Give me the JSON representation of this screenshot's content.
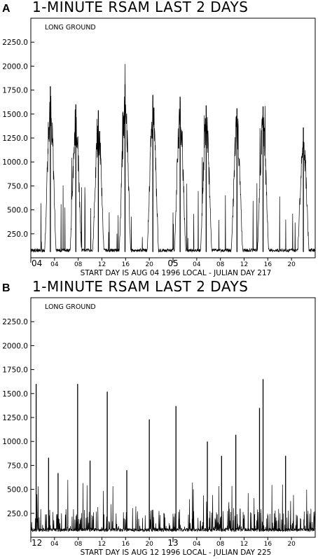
{
  "chart_data": [
    {
      "type": "line",
      "panel_label": "A",
      "title": "1-MINUTE RSAM LAST 2 DAYS",
      "inner_label": "LONG GROUND",
      "footer": "START DAY IS AUG 04 1996 LOCAL - JULIAN DAY 217",
      "ylim": [
        0,
        2500
      ],
      "yticks": [
        "250.0",
        "500.0",
        "750.0",
        "1000.0",
        "1250.0",
        "1500.0",
        "1750.0",
        "2000.0",
        "2250.0"
      ],
      "xlim": [
        0,
        48
      ],
      "xticks": [
        {
          "hour": 0,
          "label": "04"
        },
        {
          "hour": 4,
          "label": "04"
        },
        {
          "hour": 8,
          "label": "08"
        },
        {
          "hour": 12,
          "label": "12"
        },
        {
          "hour": 16,
          "label": "16"
        },
        {
          "hour": 20,
          "label": "20"
        },
        {
          "hour": 24,
          "label": "05"
        },
        {
          "hour": 28,
          "label": "04"
        },
        {
          "hour": 32,
          "label": "08"
        },
        {
          "hour": 36,
          "label": "12"
        },
        {
          "hour": 40,
          "label": "16"
        },
        {
          "hour": 44,
          "label": "20"
        }
      ],
      "day_ticks": [
        0,
        24
      ],
      "grid": false,
      "baseline": 60,
      "peaks": [
        {
          "hour": 3.3,
          "value": 1790
        },
        {
          "hour": 7.6,
          "value": 1600
        },
        {
          "hour": 11.4,
          "value": 1540
        },
        {
          "hour": 15.9,
          "value": 1810
        },
        {
          "hour": 20.6,
          "value": 1700
        },
        {
          "hour": 25.2,
          "value": 1680
        },
        {
          "hour": 29.6,
          "value": 1590
        },
        {
          "hour": 34.8,
          "value": 1560
        },
        {
          "hour": 39.2,
          "value": 1580
        },
        {
          "hour": 46.0,
          "value": 1360
        }
      ]
    },
    {
      "type": "line",
      "panel_label": "B",
      "title": "1-MINUTE RSAM LAST 2 DAYS",
      "inner_label": "LONG GROUND",
      "footer": "START DAY IS AUG 12 1996 LOCAL - JULIAN DAY 225",
      "ylim": [
        0,
        2500
      ],
      "yticks": [
        "250.0",
        "500.0",
        "750.0",
        "1000.0",
        "1250.0",
        "1500.0",
        "1750.0",
        "2000.0",
        "2250.0"
      ],
      "xlim": [
        0,
        48
      ],
      "xticks": [
        {
          "hour": 0,
          "label": "12"
        },
        {
          "hour": 4,
          "label": "04"
        },
        {
          "hour": 8,
          "label": "08"
        },
        {
          "hour": 12,
          "label": "12"
        },
        {
          "hour": 16,
          "label": "16"
        },
        {
          "hour": 20,
          "label": "20"
        },
        {
          "hour": 24,
          "label": "13"
        },
        {
          "hour": 28,
          "label": "04"
        },
        {
          "hour": 32,
          "label": "08"
        },
        {
          "hour": 36,
          "label": "12"
        },
        {
          "hour": 40,
          "label": "16"
        },
        {
          "hour": 44,
          "label": "20"
        }
      ],
      "day_ticks": [
        0,
        24
      ],
      "grid": false,
      "baseline": 60,
      "spikes": [
        {
          "hour": 0.9,
          "value": 1600
        },
        {
          "hour": 3.0,
          "value": 830
        },
        {
          "hour": 4.6,
          "value": 670
        },
        {
          "hour": 7.9,
          "value": 1600
        },
        {
          "hour": 10.0,
          "value": 800
        },
        {
          "hour": 12.9,
          "value": 1520
        },
        {
          "hour": 16.2,
          "value": 700
        },
        {
          "hour": 20.0,
          "value": 1230
        },
        {
          "hour": 24.5,
          "value": 1370
        },
        {
          "hour": 29.8,
          "value": 1000
        },
        {
          "hour": 32.2,
          "value": 850
        },
        {
          "hour": 34.6,
          "value": 1070
        },
        {
          "hour": 38.6,
          "value": 1350
        },
        {
          "hour": 39.2,
          "value": 1650
        },
        {
          "hour": 43.0,
          "value": 850
        }
      ]
    }
  ]
}
